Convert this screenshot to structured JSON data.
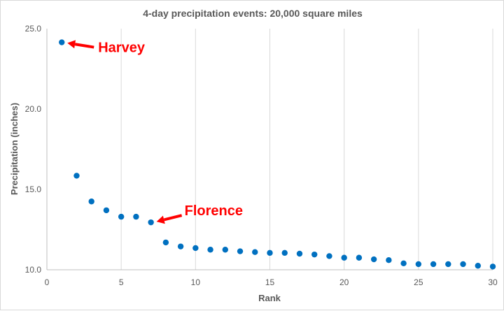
{
  "chart_data": {
    "type": "scatter",
    "title": "4-day precipitation events:  20,000 square miles",
    "xlabel": "Rank",
    "ylabel": "Precipitation (inches)",
    "xlim": [
      0,
      30
    ],
    "ylim": [
      10,
      25
    ],
    "xticks": [
      "0",
      "5",
      "10",
      "15",
      "20",
      "25",
      "30"
    ],
    "yticks": [
      "10.0",
      "15.0",
      "20.0",
      "25.0"
    ],
    "grid": "vertical",
    "marker_color": "#0070c0",
    "annotation_color": "#ff0000",
    "x": [
      1,
      2,
      3,
      4,
      5,
      6,
      7,
      8,
      9,
      10,
      11,
      12,
      13,
      14,
      15,
      16,
      17,
      18,
      19,
      20,
      21,
      22,
      23,
      24,
      25,
      26,
      27,
      28,
      29,
      30
    ],
    "y": [
      24.15,
      15.85,
      14.25,
      13.7,
      13.3,
      13.3,
      12.95,
      11.7,
      11.45,
      11.35,
      11.25,
      11.25,
      11.15,
      11.1,
      11.05,
      11.05,
      11.0,
      10.95,
      10.85,
      10.75,
      10.75,
      10.65,
      10.6,
      10.4,
      10.35,
      10.35,
      10.35,
      10.35,
      10.25,
      10.2
    ],
    "annotations": [
      {
        "text": "Harvey",
        "x": 1,
        "y": 24.15
      },
      {
        "text": "Florence",
        "x": 7,
        "y": 12.95
      }
    ]
  }
}
